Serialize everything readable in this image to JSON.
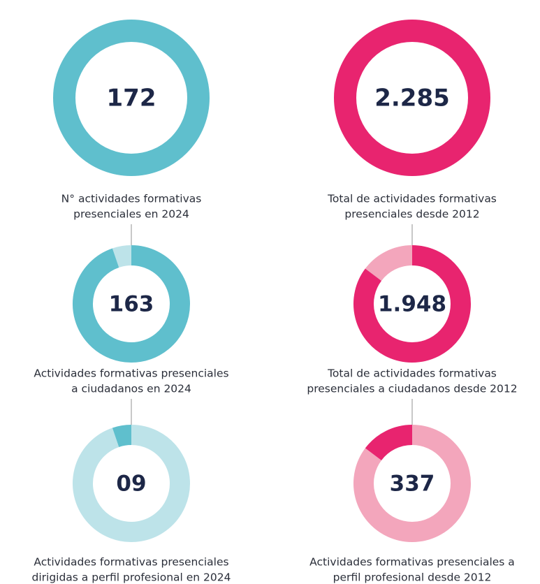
{
  "chart_data": [
    {
      "type": "donut",
      "categories": [
        [
          "N° actividades formativas",
          "presenciales en 2024"
        ],
        [
          "Actividades formativas presenciales",
          "a ciudadanos en 2024"
        ],
        [
          "Actividades formativas presenciales",
          "dirigidas a perfil profesional en 2024"
        ]
      ],
      "values": [
        172,
        163,
        9
      ],
      "value_labels": [
        "172",
        "163",
        "09"
      ],
      "color": "#5fbfcd",
      "light_color": "#bde3e9"
    },
    {
      "type": "donut",
      "categories": [
        [
          "Total de actividades formativas",
          "presenciales desde 2012"
        ],
        [
          "Total de actividades formativas",
          "presenciales a ciudadanos desde 2012"
        ],
        [
          "Actividades formativas presenciales a",
          "perfil profesional desde 2012"
        ]
      ],
      "values": [
        2285,
        1948,
        337
      ],
      "value_labels": [
        "2.285",
        "1.948",
        "337"
      ],
      "color": "#e8246f",
      "light_color": "#f3a6bc"
    }
  ]
}
